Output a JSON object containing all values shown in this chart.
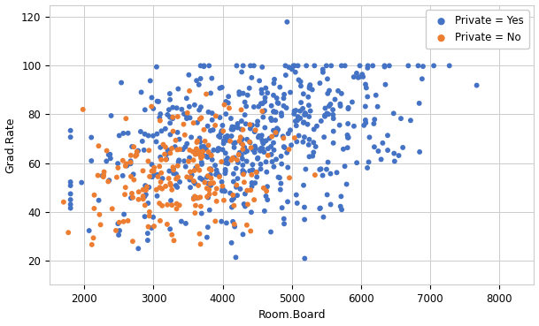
{
  "xlabel": "Room.Board",
  "ylabel": "Grad.Rate",
  "legend_labels_yes": "Private = Yes",
  "legend_labels_no": "Private = No",
  "color_yes": "#4472C4",
  "color_no": "#ED7D31",
  "xlim": [
    1500,
    8500
  ],
  "ylim": [
    10,
    125
  ],
  "xticks": [
    2000,
    3000,
    4000,
    5000,
    6000,
    7000,
    8000
  ],
  "yticks": [
    20,
    40,
    60,
    80,
    100,
    120
  ],
  "background_color": "#FFFFFF",
  "grid_color": "#CCCCCC",
  "marker_size": 18,
  "figsize": [
    6.09,
    3.69
  ],
  "dpi": 100
}
